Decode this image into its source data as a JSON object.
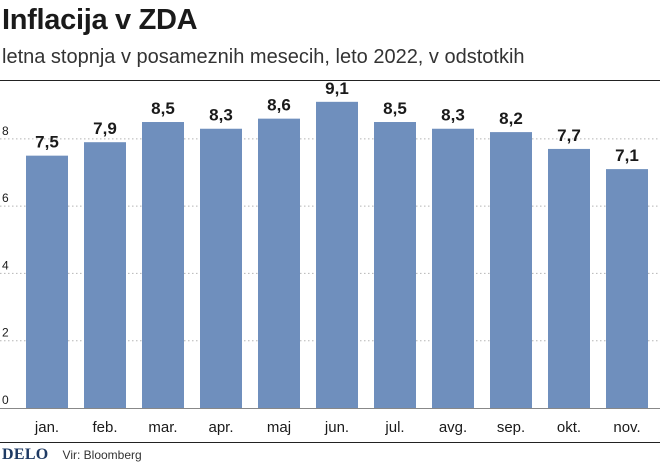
{
  "header": {
    "title": "Inflacija v ZDA",
    "subtitle": "letna stopnja v posameznih mesecih, leto 2022, v odstotkih"
  },
  "footer": {
    "logo": "DELO",
    "source": "Vir: Bloomberg"
  },
  "colors": {
    "bar": "#6f8fbd",
    "grid": "#b5b5b5",
    "text": "#1a1a1a"
  },
  "chart_data": {
    "type": "bar",
    "title": "Inflacija v ZDA",
    "subtitle": "letna stopnja v posameznih mesecih, leto 2022, v odstotkih",
    "xlabel": "",
    "ylabel": "",
    "categories": [
      "jan.",
      "feb.",
      "mar.",
      "apr.",
      "maj",
      "jun.",
      "jul.",
      "avg.",
      "sep.",
      "okt.",
      "nov."
    ],
    "values": [
      7.5,
      7.9,
      8.5,
      8.3,
      8.6,
      9.1,
      8.5,
      8.3,
      8.2,
      7.7,
      7.1
    ],
    "value_labels": [
      "7,5",
      "7,9",
      "8,5",
      "8,3",
      "8,6",
      "9,1",
      "8,5",
      "8,3",
      "8,2",
      "7,7",
      "7,1"
    ],
    "ylim": [
      0,
      9.6
    ],
    "yticks": [
      0,
      2,
      4,
      6,
      8
    ],
    "ytick_labels": [
      "0",
      "2",
      "4",
      "6",
      "8"
    ],
    "grid": true
  }
}
